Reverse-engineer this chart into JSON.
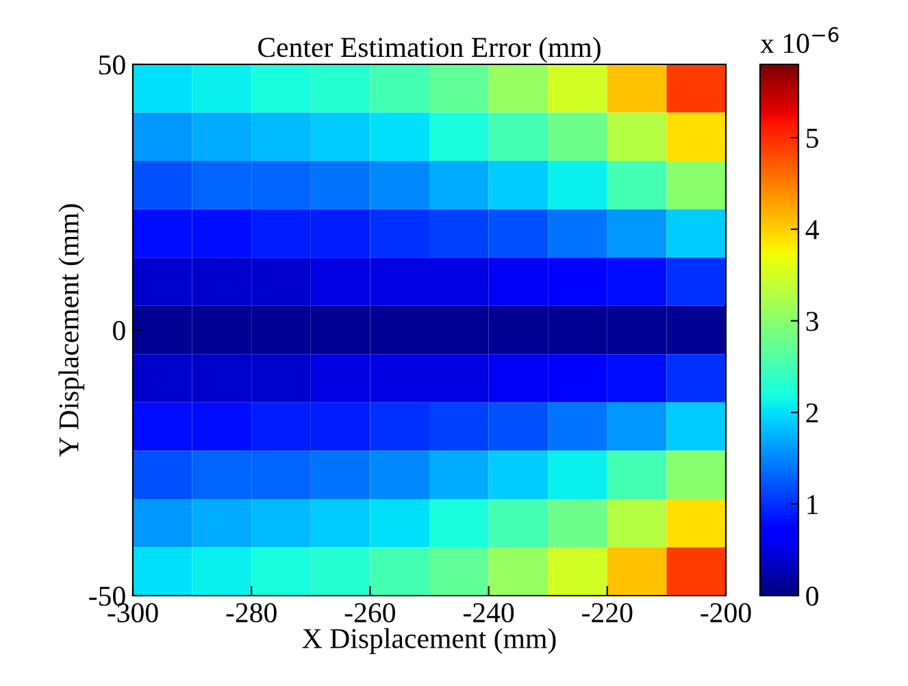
{
  "chart_data": {
    "type": "heatmap",
    "title": "Center Estimation Error (mm)",
    "xlabel": "X Displacement (mm)",
    "ylabel": "Y Displacement (mm)",
    "x": [
      -295,
      -285,
      -275,
      -265,
      -255,
      -245,
      -235,
      -225,
      -215,
      -205
    ],
    "y": [
      45.45,
      36.36,
      27.27,
      18.18,
      9.09,
      0,
      -9.09,
      -18.18,
      -27.27,
      -36.36,
      -45.45
    ],
    "xlim": [
      -300,
      -200
    ],
    "xticks": [
      -300,
      -280,
      -260,
      -240,
      -220,
      -200
    ],
    "ylim": [
      -50,
      50
    ],
    "yticks": [
      -50,
      0,
      50
    ],
    "cells": [
      [
        2.0,
        2.1,
        2.2,
        2.3,
        2.5,
        2.7,
        3.1,
        3.5,
        4.1,
        4.9
      ],
      [
        1.6,
        1.7,
        1.8,
        1.9,
        2.0,
        2.2,
        2.5,
        2.8,
        3.3,
        3.9
      ],
      [
        1.2,
        1.3,
        1.3,
        1.4,
        1.5,
        1.7,
        1.9,
        2.1,
        2.5,
        3.0
      ],
      [
        0.8,
        0.8,
        0.9,
        0.9,
        1.0,
        1.1,
        1.2,
        1.4,
        1.6,
        1.9
      ],
      [
        0.4,
        0.4,
        0.4,
        0.5,
        0.5,
        0.5,
        0.6,
        0.7,
        0.8,
        1.0
      ],
      [
        0.1,
        0.1,
        0.1,
        0.1,
        0.1,
        0.1,
        0.1,
        0.1,
        0.1,
        0.1
      ],
      [
        0.4,
        0.4,
        0.4,
        0.5,
        0.5,
        0.5,
        0.6,
        0.7,
        0.8,
        1.0
      ],
      [
        0.8,
        0.8,
        0.9,
        0.9,
        1.0,
        1.1,
        1.2,
        1.4,
        1.6,
        1.9
      ],
      [
        1.2,
        1.3,
        1.3,
        1.4,
        1.5,
        1.7,
        1.9,
        2.1,
        2.5,
        3.0
      ],
      [
        1.6,
        1.7,
        1.8,
        1.9,
        2.0,
        2.2,
        2.5,
        2.8,
        3.3,
        3.9
      ],
      [
        2.0,
        2.1,
        2.2,
        2.3,
        2.5,
        2.7,
        3.1,
        3.5,
        4.1,
        4.9
      ]
    ],
    "clim": [
      0,
      5.8
    ],
    "cticks": [
      0,
      1,
      2,
      3,
      4,
      5
    ],
    "annotations": [
      "x 10$^{−6}$"
    ]
  }
}
